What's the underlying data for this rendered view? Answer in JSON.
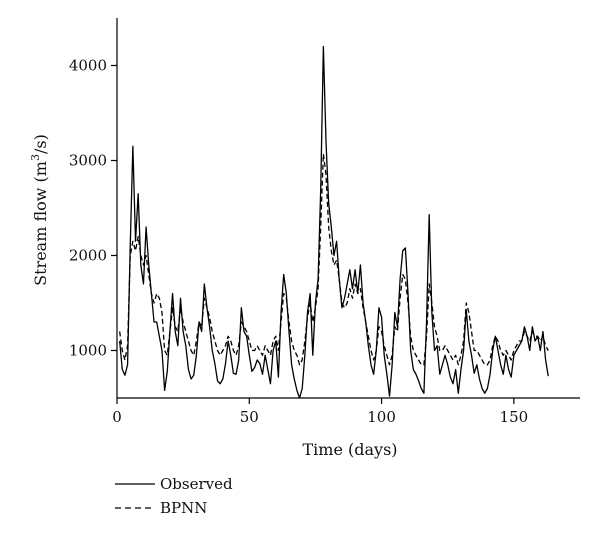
{
  "chart_data": {
    "type": "line",
    "xlabel": "Time (days)",
    "ylabel_main": "Stream flow (m",
    "ylabel_sup": "3",
    "ylabel_tail": "/s)",
    "xlim": [
      0,
      175
    ],
    "ylim": [
      500,
      4500
    ],
    "xticks": [
      0,
      50,
      100,
      150
    ],
    "yticks": [
      1000,
      2000,
      3000,
      4000
    ],
    "grid": false,
    "legend_position": "bottom-left",
    "series": [
      {
        "name": "Observed",
        "style": "solid",
        "color": "#000000",
        "values": [
          [
            1,
            1100
          ],
          [
            2,
            800
          ],
          [
            3,
            740
          ],
          [
            4,
            850
          ],
          [
            5,
            2100
          ],
          [
            6,
            3150
          ],
          [
            7,
            2150
          ],
          [
            8,
            2650
          ],
          [
            9,
            1900
          ],
          [
            10,
            1700
          ],
          [
            11,
            2300
          ],
          [
            12,
            1900
          ],
          [
            13,
            1600
          ],
          [
            14,
            1300
          ],
          [
            15,
            1300
          ],
          [
            16,
            1150
          ],
          [
            17,
            1000
          ],
          [
            18,
            580
          ],
          [
            19,
            780
          ],
          [
            20,
            1200
          ],
          [
            21,
            1600
          ],
          [
            22,
            1200
          ],
          [
            23,
            1050
          ],
          [
            24,
            1550
          ],
          [
            25,
            1200
          ],
          [
            26,
            1050
          ],
          [
            27,
            800
          ],
          [
            28,
            700
          ],
          [
            29,
            740
          ],
          [
            30,
            950
          ],
          [
            31,
            1300
          ],
          [
            32,
            1200
          ],
          [
            33,
            1700
          ],
          [
            34,
            1450
          ],
          [
            35,
            1250
          ],
          [
            36,
            1000
          ],
          [
            37,
            860
          ],
          [
            38,
            680
          ],
          [
            39,
            650
          ],
          [
            40,
            700
          ],
          [
            41,
            860
          ],
          [
            42,
            1100
          ],
          [
            43,
            950
          ],
          [
            44,
            760
          ],
          [
            45,
            750
          ],
          [
            46,
            900
          ],
          [
            47,
            1450
          ],
          [
            48,
            1200
          ],
          [
            49,
            1150
          ],
          [
            50,
            950
          ],
          [
            51,
            780
          ],
          [
            52,
            820
          ],
          [
            53,
            900
          ],
          [
            54,
            860
          ],
          [
            55,
            750
          ],
          [
            56,
            950
          ],
          [
            57,
            800
          ],
          [
            58,
            650
          ],
          [
            59,
            1000
          ],
          [
            60,
            1100
          ],
          [
            61,
            720
          ],
          [
            62,
            1400
          ],
          [
            63,
            1800
          ],
          [
            64,
            1600
          ],
          [
            65,
            1200
          ],
          [
            66,
            850
          ],
          [
            67,
            700
          ],
          [
            68,
            580
          ],
          [
            69,
            500
          ],
          [
            70,
            600
          ],
          [
            71,
            950
          ],
          [
            72,
            1400
          ],
          [
            73,
            1600
          ],
          [
            74,
            950
          ],
          [
            75,
            1500
          ],
          [
            76,
            1750
          ],
          [
            77,
            2700
          ],
          [
            78,
            4200
          ],
          [
            79,
            3200
          ],
          [
            80,
            2550
          ],
          [
            81,
            2300
          ],
          [
            82,
            2000
          ],
          [
            83,
            2150
          ],
          [
            84,
            1750
          ],
          [
            85,
            1450
          ],
          [
            86,
            1550
          ],
          [
            87,
            1700
          ],
          [
            88,
            1850
          ],
          [
            89,
            1650
          ],
          [
            90,
            1850
          ],
          [
            91,
            1600
          ],
          [
            92,
            1900
          ],
          [
            93,
            1500
          ],
          [
            94,
            1300
          ],
          [
            95,
            1050
          ],
          [
            96,
            850
          ],
          [
            97,
            750
          ],
          [
            98,
            1000
          ],
          [
            99,
            1450
          ],
          [
            100,
            1350
          ],
          [
            101,
            950
          ],
          [
            102,
            750
          ],
          [
            103,
            520
          ],
          [
            104,
            850
          ],
          [
            105,
            1400
          ],
          [
            106,
            1250
          ],
          [
            107,
            1750
          ],
          [
            108,
            2050
          ],
          [
            109,
            2080
          ],
          [
            110,
            1600
          ],
          [
            111,
            1000
          ],
          [
            112,
            800
          ],
          [
            113,
            750
          ],
          [
            114,
            680
          ],
          [
            115,
            600
          ],
          [
            116,
            550
          ],
          [
            117,
            1300
          ],
          [
            118,
            2430
          ],
          [
            119,
            1400
          ],
          [
            120,
            1000
          ],
          [
            121,
            1050
          ],
          [
            122,
            750
          ],
          [
            123,
            850
          ],
          [
            124,
            950
          ],
          [
            125,
            850
          ],
          [
            126,
            720
          ],
          [
            127,
            650
          ],
          [
            128,
            800
          ],
          [
            129,
            550
          ],
          [
            130,
            800
          ],
          [
            131,
            1000
          ],
          [
            132,
            1430
          ],
          [
            133,
            1100
          ],
          [
            134,
            950
          ],
          [
            135,
            760
          ],
          [
            136,
            850
          ],
          [
            137,
            700
          ],
          [
            138,
            600
          ],
          [
            139,
            550
          ],
          [
            140,
            600
          ],
          [
            141,
            750
          ],
          [
            142,
            1000
          ],
          [
            143,
            1150
          ],
          [
            144,
            1000
          ],
          [
            145,
            850
          ],
          [
            146,
            750
          ],
          [
            147,
            950
          ],
          [
            148,
            800
          ],
          [
            149,
            720
          ],
          [
            150,
            950
          ],
          [
            151,
            1000
          ],
          [
            152,
            1050
          ],
          [
            153,
            1100
          ],
          [
            154,
            1250
          ],
          [
            155,
            1150
          ],
          [
            156,
            1000
          ],
          [
            157,
            1250
          ],
          [
            158,
            1100
          ],
          [
            159,
            1150
          ],
          [
            160,
            1000
          ],
          [
            161,
            1200
          ],
          [
            162,
            900
          ],
          [
            163,
            730
          ]
        ]
      },
      {
        "name": "BPNN",
        "style": "dashed",
        "color": "#000000",
        "values": [
          [
            1,
            1200
          ],
          [
            2,
            1000
          ],
          [
            3,
            900
          ],
          [
            4,
            1050
          ],
          [
            5,
            2000
          ],
          [
            6,
            2150
          ],
          [
            7,
            2050
          ],
          [
            8,
            2200
          ],
          [
            9,
            2000
          ],
          [
            10,
            1900
          ],
          [
            11,
            2000
          ],
          [
            12,
            1800
          ],
          [
            13,
            1600
          ],
          [
            14,
            1500
          ],
          [
            15,
            1600
          ],
          [
            16,
            1550
          ],
          [
            17,
            1400
          ],
          [
            18,
            1000
          ],
          [
            19,
            950
          ],
          [
            20,
            1200
          ],
          [
            21,
            1450
          ],
          [
            22,
            1250
          ],
          [
            23,
            1200
          ],
          [
            24,
            1450
          ],
          [
            25,
            1300
          ],
          [
            26,
            1200
          ],
          [
            27,
            1100
          ],
          [
            28,
            1000
          ],
          [
            29,
            950
          ],
          [
            30,
            1100
          ],
          [
            31,
            1300
          ],
          [
            32,
            1250
          ],
          [
            33,
            1550
          ],
          [
            34,
            1450
          ],
          [
            35,
            1350
          ],
          [
            36,
            1200
          ],
          [
            37,
            1100
          ],
          [
            38,
            1000
          ],
          [
            39,
            950
          ],
          [
            40,
            1000
          ],
          [
            41,
            1050
          ],
          [
            42,
            1150
          ],
          [
            43,
            1100
          ],
          [
            44,
            1000
          ],
          [
            45,
            950
          ],
          [
            46,
            1050
          ],
          [
            47,
            1300
          ],
          [
            48,
            1250
          ],
          [
            49,
            1200
          ],
          [
            50,
            1100
          ],
          [
            51,
            1000
          ],
          [
            52,
            1000
          ],
          [
            53,
            1050
          ],
          [
            54,
            1000
          ],
          [
            55,
            950
          ],
          [
            56,
            1050
          ],
          [
            57,
            1000
          ],
          [
            58,
            950
          ],
          [
            59,
            1100
          ],
          [
            60,
            1150
          ],
          [
            61,
            1000
          ],
          [
            62,
            1300
          ],
          [
            63,
            1600
          ],
          [
            64,
            1550
          ],
          [
            65,
            1300
          ],
          [
            66,
            1100
          ],
          [
            67,
            1000
          ],
          [
            68,
            950
          ],
          [
            69,
            850
          ],
          [
            70,
            900
          ],
          [
            71,
            1100
          ],
          [
            72,
            1350
          ],
          [
            73,
            1500
          ],
          [
            74,
            1300
          ],
          [
            75,
            1450
          ],
          [
            76,
            1650
          ],
          [
            77,
            2300
          ],
          [
            78,
            3070
          ],
          [
            79,
            2850
          ],
          [
            80,
            2300
          ],
          [
            81,
            2050
          ],
          [
            82,
            1900
          ],
          [
            83,
            1950
          ],
          [
            84,
            1750
          ],
          [
            85,
            1500
          ],
          [
            86,
            1450
          ],
          [
            87,
            1500
          ],
          [
            88,
            1650
          ],
          [
            89,
            1550
          ],
          [
            90,
            1700
          ],
          [
            91,
            1600
          ],
          [
            92,
            1650
          ],
          [
            93,
            1450
          ],
          [
            94,
            1300
          ],
          [
            95,
            1150
          ],
          [
            96,
            1000
          ],
          [
            97,
            900
          ],
          [
            98,
            1000
          ],
          [
            99,
            1250
          ],
          [
            100,
            1200
          ],
          [
            101,
            1050
          ],
          [
            102,
            950
          ],
          [
            103,
            850
          ],
          [
            104,
            950
          ],
          [
            105,
            1250
          ],
          [
            106,
            1200
          ],
          [
            107,
            1550
          ],
          [
            108,
            1800
          ],
          [
            109,
            1750
          ],
          [
            110,
            1500
          ],
          [
            111,
            1150
          ],
          [
            112,
            1000
          ],
          [
            113,
            950
          ],
          [
            114,
            900
          ],
          [
            115,
            850
          ],
          [
            116,
            850
          ],
          [
            117,
            1150
          ],
          [
            118,
            1700
          ],
          [
            119,
            1500
          ],
          [
            120,
            1250
          ],
          [
            121,
            1150
          ],
          [
            122,
            1000
          ],
          [
            123,
            1000
          ],
          [
            124,
            1050
          ],
          [
            125,
            1000
          ],
          [
            126,
            950
          ],
          [
            127,
            900
          ],
          [
            128,
            950
          ],
          [
            129,
            850
          ],
          [
            130,
            950
          ],
          [
            131,
            1100
          ],
          [
            132,
            1500
          ],
          [
            133,
            1400
          ],
          [
            134,
            1200
          ],
          [
            135,
            1000
          ],
          [
            136,
            1000
          ],
          [
            137,
            950
          ],
          [
            138,
            900
          ],
          [
            139,
            850
          ],
          [
            140,
            850
          ],
          [
            141,
            900
          ],
          [
            142,
            1050
          ],
          [
            143,
            1150
          ],
          [
            144,
            1100
          ],
          [
            145,
            1000
          ],
          [
            146,
            950
          ],
          [
            147,
            1000
          ],
          [
            148,
            950
          ],
          [
            149,
            900
          ],
          [
            150,
            1000
          ],
          [
            151,
            1050
          ],
          [
            152,
            1100
          ],
          [
            153,
            1100
          ],
          [
            154,
            1200
          ],
          [
            155,
            1150
          ],
          [
            156,
            1100
          ],
          [
            157,
            1200
          ],
          [
            158,
            1150
          ],
          [
            159,
            1150
          ],
          [
            160,
            1100
          ],
          [
            161,
            1150
          ],
          [
            162,
            1050
          ],
          [
            163,
            1000
          ]
        ]
      }
    ]
  }
}
